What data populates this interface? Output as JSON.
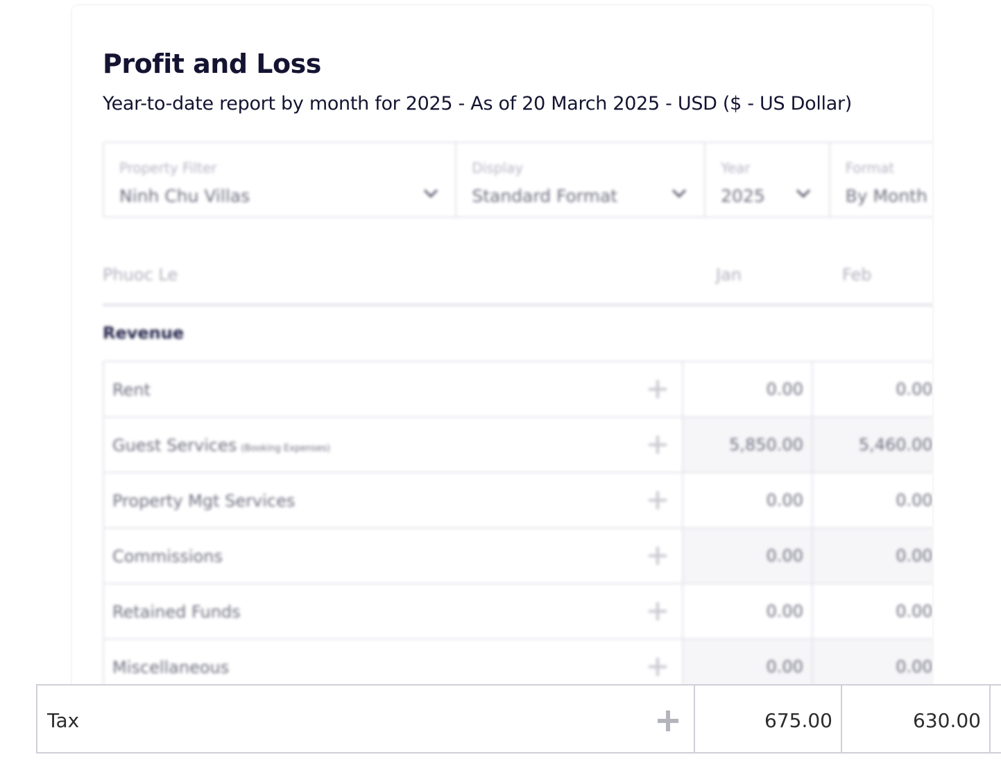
{
  "report": {
    "title": "Profit and Loss",
    "subtitle": "Year-to-date report by month for 2025 - As of 20 March 2025 - USD ($ - US Dollar)"
  },
  "filters": {
    "property": {
      "label": "Property Filter",
      "value": "Ninh Chu Villas"
    },
    "display": {
      "label": "Display",
      "value": "Standard Format"
    },
    "year": {
      "label": "Year",
      "value": "2025"
    },
    "format": {
      "label": "Format",
      "value": "By Month"
    }
  },
  "table_header": {
    "owner": "Phuoc Le",
    "months": [
      "Jan",
      "Feb"
    ]
  },
  "revenue": {
    "title": "Revenue",
    "rows": [
      {
        "label": "Rent",
        "note": "",
        "jan": "0.00",
        "feb": "0.00"
      },
      {
        "label": "Guest Services",
        "note": "(Booking Expenses)",
        "jan": "5,850.00",
        "feb": "5,460.00"
      },
      {
        "label": "Property Mgt Services",
        "note": "",
        "jan": "0.00",
        "feb": "0.00"
      },
      {
        "label": "Commissions",
        "note": "",
        "jan": "0.00",
        "feb": "0.00"
      },
      {
        "label": "Retained Funds",
        "note": "",
        "jan": "0.00",
        "feb": "0.00"
      },
      {
        "label": "Miscellaneous",
        "note": "",
        "jan": "0.00",
        "feb": "0.00"
      }
    ]
  },
  "tax_row": {
    "label": "Tax",
    "jan": "675.00",
    "feb": "630.00"
  },
  "icons": {
    "dropdown": "chevron-down-icon",
    "expand": "plus-icon"
  }
}
